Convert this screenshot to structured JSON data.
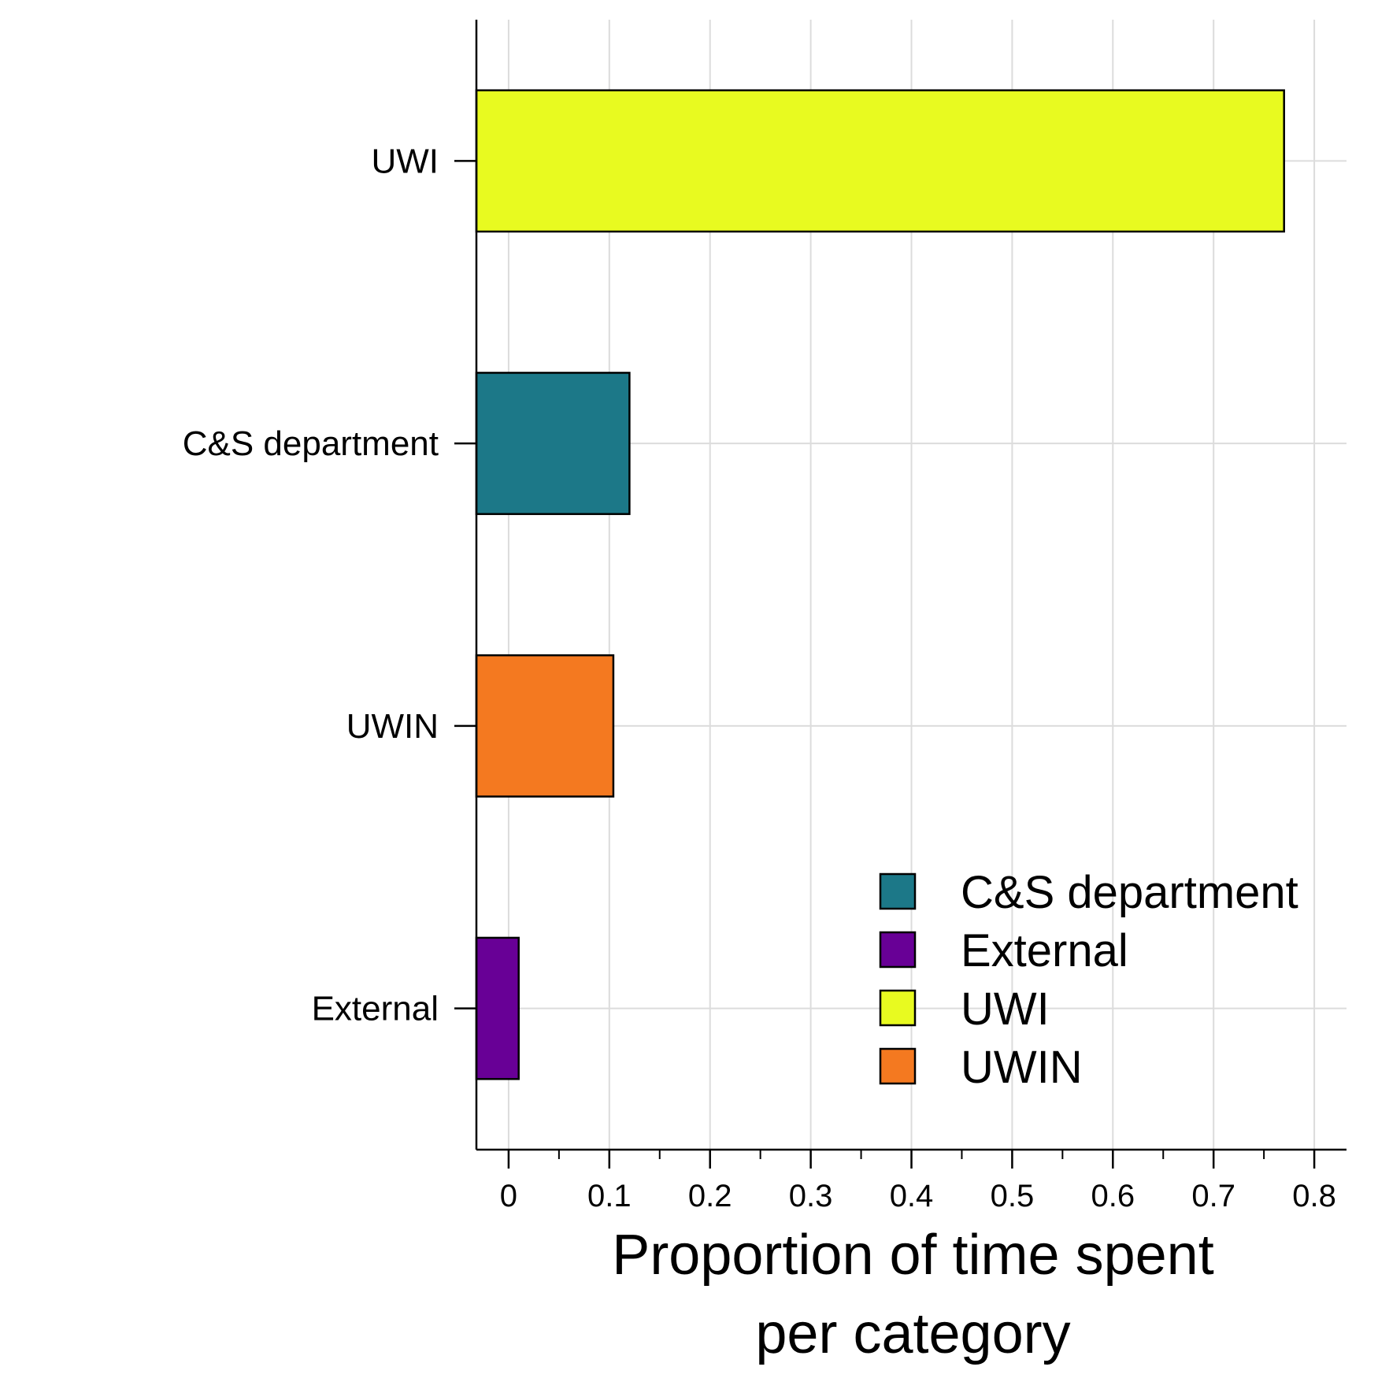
{
  "chart_data": {
    "type": "bar",
    "orientation": "horizontal",
    "categories": [
      "UWI",
      "C&S department",
      "UWIN",
      "External"
    ],
    "values": [
      0.77,
      0.12,
      0.104,
      0.01
    ],
    "colors": {
      "UWI": "#E8FA20",
      "C&S department": "#1C7888",
      "UWIN": "#F47920",
      "External": "#680096"
    },
    "xlabel": "Proportion of time spent per category",
    "xlabel_lines": [
      "Proportion of time spent",
      "per category"
    ],
    "xlim": [
      -0.032,
      0.832
    ],
    "x_ticks": [
      0,
      0.1,
      0.2,
      0.3,
      0.4,
      0.5,
      0.6,
      0.7,
      0.8
    ],
    "x_tick_labels": [
      "0",
      "0.1",
      "0.2",
      "0.3",
      "0.4",
      "0.5",
      "0.6",
      "0.7",
      "0.8"
    ],
    "grid": true,
    "legend": {
      "placement": "bottom-right",
      "entries": [
        "C&S department",
        "External",
        "UWI",
        "UWIN"
      ]
    }
  }
}
